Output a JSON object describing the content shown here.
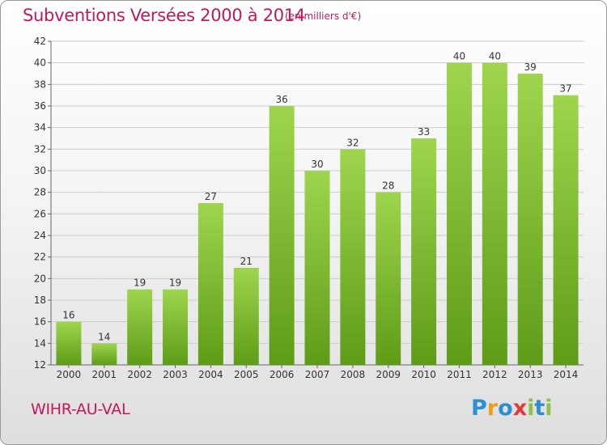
{
  "header": {
    "title": "Subventions Versées 2000 à 2014",
    "subtitle": "(en milliers d'€)"
  },
  "footer": {
    "commune": "WIHR-AU-VAL",
    "logo_letters": [
      {
        "char": "P",
        "color": "#2a8fd4"
      },
      {
        "char": "r",
        "color": "#f39c12"
      },
      {
        "char": "o",
        "color": "#2a8fd4"
      },
      {
        "char": "x",
        "color": "#e53935"
      },
      {
        "char": "i",
        "color": "#8bc34a"
      },
      {
        "char": "t",
        "color": "#2a8fd4"
      },
      {
        "char": "i",
        "color": "#8bc34a"
      }
    ]
  },
  "colors": {
    "bar_light": "#9fd54e",
    "bar_dark": "#5e9c17",
    "title": "#c2185b",
    "grid": "#cccccc"
  },
  "chart_data": {
    "type": "bar",
    "title": "Subventions Versées 2000 à 2014",
    "subtitle": "(en milliers d'€)",
    "xlabel": "",
    "ylabel": "",
    "categories": [
      "2000",
      "2001",
      "2002",
      "2003",
      "2004",
      "2005",
      "2006",
      "2007",
      "2008",
      "2009",
      "2010",
      "2011",
      "2012",
      "2013",
      "2014"
    ],
    "values": [
      16,
      14,
      19,
      19,
      27,
      21,
      36,
      30,
      32,
      28,
      33,
      40,
      40,
      39,
      37
    ],
    "data_labels": [
      "16",
      "14",
      "19",
      "19",
      "27",
      "21",
      "36",
      "30",
      "32",
      "28",
      "33",
      "40",
      "40",
      "39",
      "37"
    ],
    "ylim": [
      12,
      42
    ],
    "yticks": [
      12,
      14,
      16,
      18,
      20,
      22,
      24,
      26,
      28,
      30,
      32,
      34,
      36,
      38,
      40,
      42
    ],
    "grid": true,
    "legend": "none"
  }
}
